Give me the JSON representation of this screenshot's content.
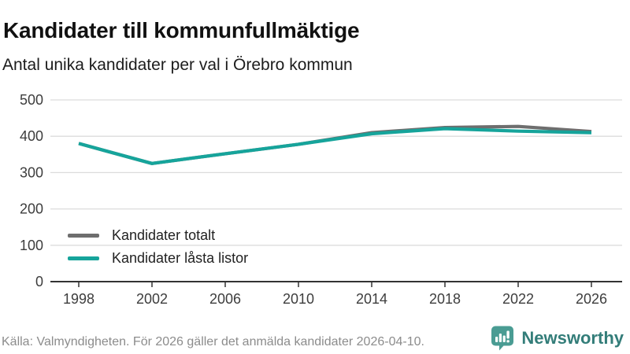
{
  "header": {
    "title": "Kandidater till kommunfullmäktige",
    "subtitle": "Antal unika kandidater per val i Örebro kommun"
  },
  "chart_data": {
    "type": "line",
    "title": "Kandidater till kommunfullmäktige",
    "subtitle": "Antal unika kandidater per val i Örebro kommun",
    "x": [
      1998,
      2002,
      2006,
      2010,
      2014,
      2018,
      2022,
      2026
    ],
    "series": [
      {
        "name": "Kandidater totalt",
        "color": "#6e6e6e",
        "values": [
          380,
          325,
          352,
          378,
          410,
          424,
          427,
          413
        ]
      },
      {
        "name": "Kandidater låsta listor",
        "color": "#16a49b",
        "values": [
          380,
          325,
          352,
          378,
          407,
          421,
          414,
          410
        ]
      }
    ],
    "xlabel": "",
    "ylabel": "",
    "ylim": [
      0,
      500
    ],
    "yticks": [
      0,
      100,
      200,
      300,
      400,
      500
    ],
    "grid": "horizontal",
    "gridline_color": "#dcdcdc",
    "axis_color": "#333333",
    "tick_label_color": "#3d3d3d",
    "legend_position": "inside-bottom-left"
  },
  "footer": {
    "source": "Källa: Valmyndigheten. För 2026 gäller det anmälda kandidater 2026-04-10."
  },
  "branding": {
    "name": "Newsworthy",
    "icon": "newsworthy-chart-bubble-icon",
    "icon_color": "#4a9c93",
    "text_color": "#337d79"
  }
}
